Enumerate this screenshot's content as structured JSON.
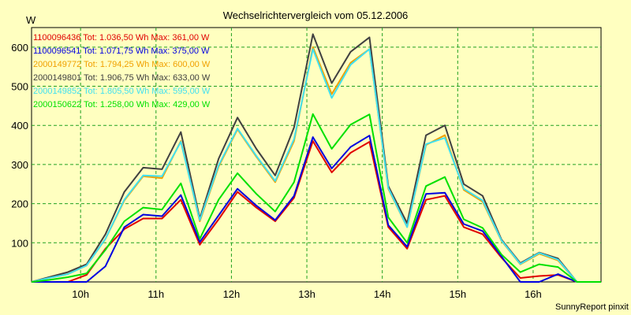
{
  "chart_data": {
    "type": "line",
    "title": "Wechselrichtervergleich vom 05.12.2006",
    "ylabel": "W",
    "footer": "SunnyReport pinxit",
    "ylim": [
      0,
      650
    ],
    "xlim": [
      9.35,
      16.9
    ],
    "grid": true,
    "legend_position": "top-left",
    "y_ticks": [
      {
        "value": 100,
        "label": "100"
      },
      {
        "value": 200,
        "label": "200"
      },
      {
        "value": 300,
        "label": "300"
      },
      {
        "value": 400,
        "label": "400"
      },
      {
        "value": 500,
        "label": "500"
      },
      {
        "value": 600,
        "label": "600"
      }
    ],
    "x_ticks": [
      {
        "value": 10,
        "label": "10h"
      },
      {
        "value": 11,
        "label": "11h"
      },
      {
        "value": 12,
        "label": "12h"
      },
      {
        "value": 13,
        "label": "13h"
      },
      {
        "value": 14,
        "label": "14h"
      },
      {
        "value": 15,
        "label": "15h"
      },
      {
        "value": 16,
        "label": "16h"
      }
    ],
    "x": [
      9.35,
      9.58,
      9.83,
      10.08,
      10.33,
      10.58,
      10.83,
      11.08,
      11.33,
      11.58,
      11.83,
      12.08,
      12.33,
      12.58,
      12.83,
      13.08,
      13.33,
      13.58,
      13.83,
      14.08,
      14.33,
      14.58,
      14.83,
      15.08,
      15.33,
      15.58,
      15.83,
      16.08,
      16.33,
      16.58,
      16.9
    ],
    "series": [
      {
        "id": "1100096436",
        "legend": "Tot: 1.036,50 Wh Max: 361,00 W",
        "color": "#e00000",
        "values": [
          0,
          0,
          0,
          18,
          85,
          135,
          162,
          162,
          210,
          95,
          160,
          230,
          190,
          155,
          215,
          360,
          280,
          330,
          358,
          140,
          85,
          210,
          220,
          140,
          122,
          62,
          10,
          15,
          18,
          0,
          0
        ]
      },
      {
        "id": "1100096541",
        "legend": "Tot: 1.071,75 Wh Max: 375,00 W",
        "color": "#0000e0",
        "values": [
          0,
          0,
          0,
          0,
          40,
          140,
          172,
          168,
          222,
          102,
          170,
          238,
          195,
          158,
          220,
          370,
          290,
          345,
          374,
          145,
          90,
          225,
          228,
          148,
          130,
          65,
          0,
          0,
          20,
          0,
          0
        ]
      },
      {
        "id": "2000149772",
        "legend": "Tot: 1.794,25 Wh Max: 600,00 W",
        "color": "#f0a000",
        "values": [
          0,
          10,
          20,
          42,
          110,
          208,
          270,
          265,
          360,
          155,
          295,
          390,
          320,
          255,
          360,
          600,
          480,
          560,
          595,
          238,
          140,
          350,
          375,
          235,
          205,
          105,
          45,
          72,
          55,
          0,
          0
        ]
      },
      {
        "id": "2000149801",
        "legend": "Tot: 1.906,75 Wh Max: 633,00 W",
        "color": "#404040",
        "values": [
          0,
          12,
          25,
          45,
          122,
          230,
          292,
          288,
          383,
          162,
          315,
          420,
          340,
          272,
          395,
          633,
          508,
          588,
          625,
          245,
          150,
          375,
          400,
          250,
          220,
          108,
          48,
          75,
          60,
          0,
          0
        ]
      },
      {
        "id": "2000149852",
        "legend": "Tot: 1.805,50 Wh Max: 595,00 W",
        "color": "#40e0f0",
        "values": [
          0,
          10,
          20,
          42,
          110,
          210,
          272,
          270,
          358,
          158,
          298,
          392,
          322,
          258,
          365,
          595,
          470,
          555,
          595,
          240,
          140,
          352,
          368,
          238,
          208,
          106,
          46,
          74,
          57,
          0,
          0
        ]
      },
      {
        "id": "2000150622",
        "legend": "Tot: 1.258,00 Wh Max: 429,00 W",
        "color": "#00e000",
        "values": [
          0,
          5,
          12,
          22,
          82,
          155,
          190,
          185,
          252,
          110,
          210,
          278,
          225,
          180,
          255,
          429,
          340,
          402,
          428,
          165,
          100,
          245,
          268,
          160,
          138,
          70,
          25,
          45,
          38,
          0,
          0
        ]
      }
    ]
  }
}
